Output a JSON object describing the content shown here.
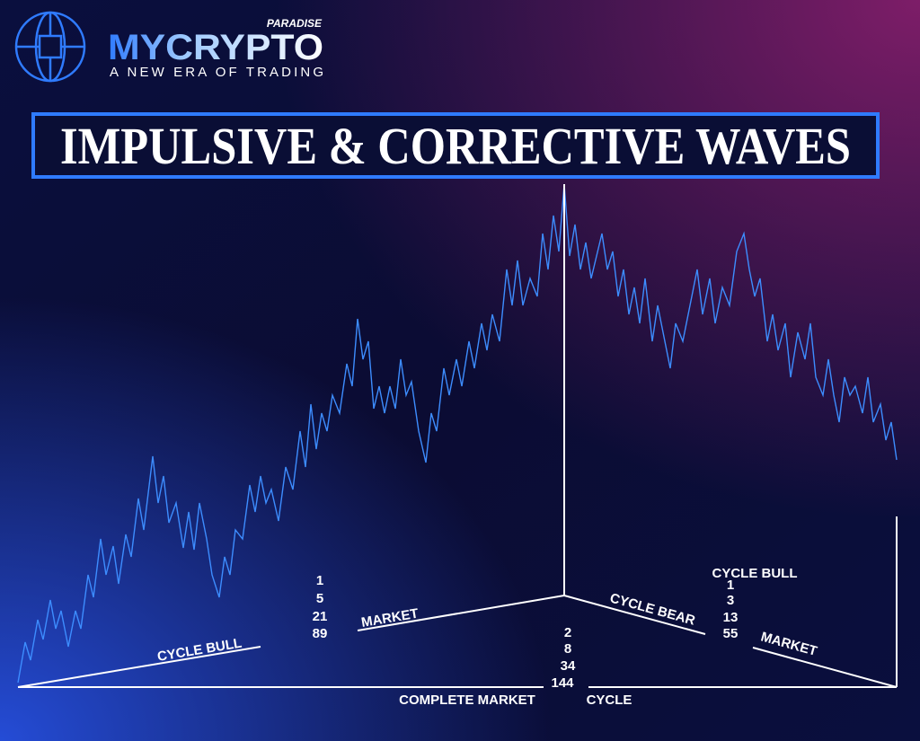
{
  "logo": {
    "tagline_top": "PARADISE",
    "brand": "MYCRYPTO",
    "slogan": "A NEW ERA OF TRADING"
  },
  "title": "IMPULSIVE & CORRECTIVE WAVES",
  "left": {
    "label_low": "CYCLE BULL",
    "label_high": "MARKET",
    "numbers": [
      1,
      5,
      21,
      89
    ]
  },
  "center": {
    "numbers": [
      2,
      8,
      34,
      144
    ],
    "label_left": "COMPLETE MARKET",
    "label_right": "CYCLE"
  },
  "right": {
    "heading": "CYCLE BULL",
    "numbers": [
      1,
      3,
      13,
      55
    ],
    "label_high": "CYCLE BEAR",
    "label_low": "MARKET"
  }
}
